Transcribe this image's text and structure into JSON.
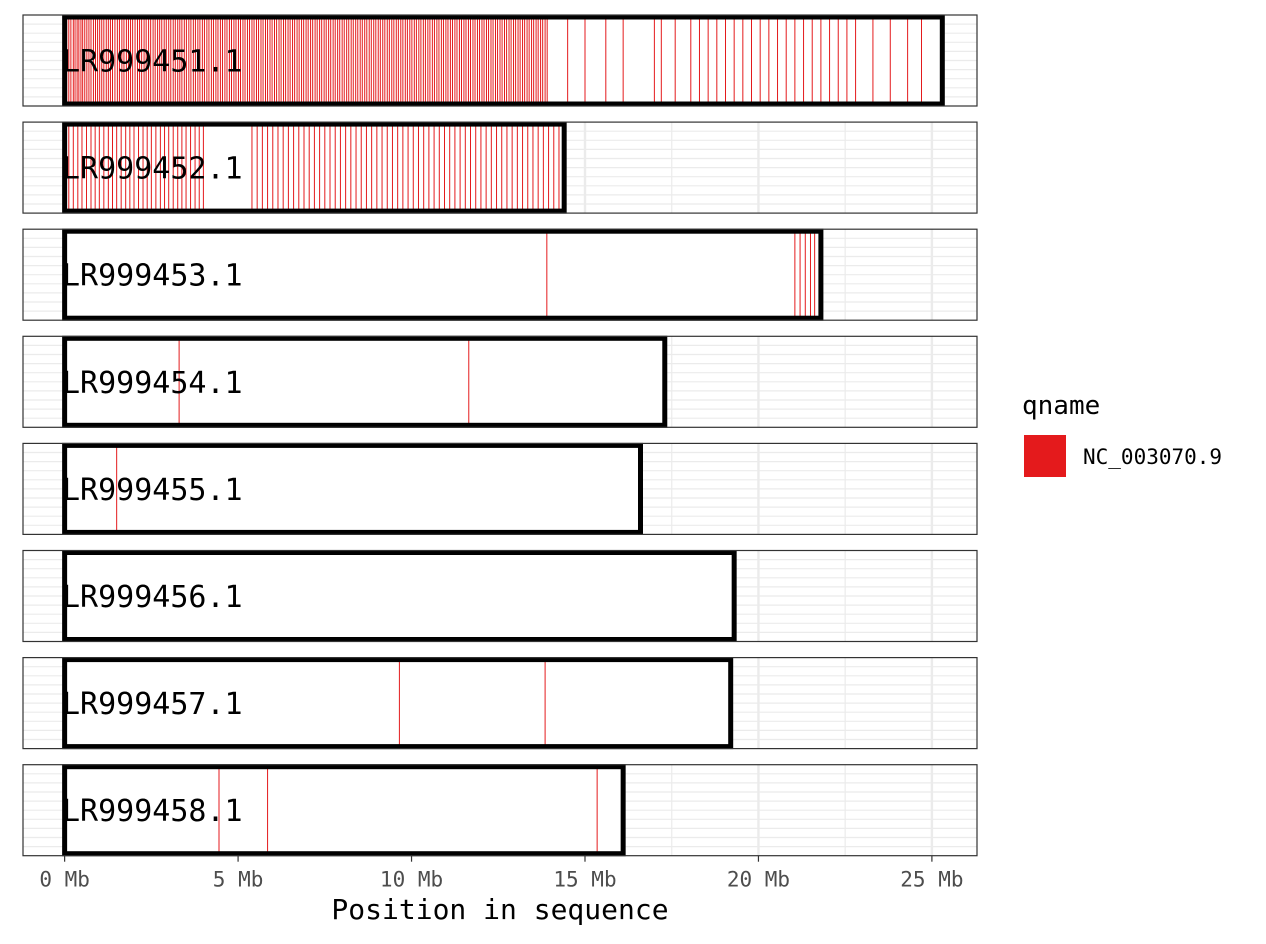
{
  "chart_data": {
    "type": "bar",
    "xlabel": "Position in sequence",
    "x_unit": "Mb",
    "xlim": [
      -1.2,
      26.3
    ],
    "x_ticks": [
      0,
      5,
      10,
      15,
      20,
      25
    ],
    "x_tick_labels": [
      "0 Mb",
      "5 Mb",
      "10 Mb",
      "15 Mb",
      "20 Mb",
      "25 Mb"
    ],
    "grid": true,
    "legend": {
      "title": "qname",
      "entries": [
        "NC_003070.9"
      ],
      "placement": "right"
    },
    "series": [
      {
        "name": "NC_003070.9",
        "color": "#e41a1c"
      }
    ],
    "chromosomes": [
      {
        "name": "LR999451.1",
        "length_mb": 25.3,
        "marks_mb": [
          0.06,
          0.12,
          0.18,
          0.25,
          0.3,
          0.36,
          0.41,
          0.47,
          0.52,
          0.58,
          0.64,
          0.7,
          0.76,
          0.83,
          0.89,
          0.95,
          1.01,
          1.07,
          1.13,
          1.2,
          1.26,
          1.32,
          1.38,
          1.45,
          1.52,
          1.58,
          1.65,
          1.71,
          1.78,
          1.84,
          1.9,
          1.96,
          2.03,
          2.1,
          2.16,
          2.22,
          2.29,
          2.35,
          2.42,
          2.48,
          2.55,
          2.61,
          2.68,
          2.74,
          2.8,
          2.87,
          2.93,
          3.0,
          3.06,
          3.13,
          3.19,
          3.26,
          3.32,
          3.38,
          3.45,
          3.51,
          3.58,
          3.64,
          3.71,
          3.77,
          3.84,
          3.9,
          3.97,
          4.03,
          4.1,
          4.16,
          4.23,
          4.29,
          4.36,
          4.42,
          4.49,
          4.55,
          4.62,
          4.68,
          4.75,
          4.81,
          4.88,
          4.94,
          5.01,
          5.07,
          5.14,
          5.2,
          5.27,
          5.33,
          5.4,
          5.46,
          5.53,
          5.59,
          5.66,
          5.72,
          5.79,
          5.85,
          5.92,
          5.98,
          6.05,
          6.11,
          6.18,
          6.24,
          6.31,
          6.37,
          6.44,
          6.5,
          6.57,
          6.63,
          6.7,
          6.76,
          6.83,
          6.89,
          6.96,
          7.02,
          7.09,
          7.15,
          7.22,
          7.28,
          7.35,
          7.41,
          7.48,
          7.54,
          7.61,
          7.67,
          7.74,
          7.8,
          7.87,
          7.93,
          8.0,
          8.06,
          8.13,
          8.19,
          8.26,
          8.32,
          8.39,
          8.45,
          8.52,
          8.58,
          8.65,
          8.71,
          8.78,
          8.84,
          8.91,
          8.97,
          9.04,
          9.1,
          9.17,
          9.23,
          9.3,
          9.36,
          9.43,
          9.49,
          9.56,
          9.62,
          9.69,
          9.75,
          9.82,
          9.88,
          9.95,
          10.01,
          10.08,
          10.14,
          10.21,
          10.27,
          10.34,
          10.4,
          10.47,
          10.53,
          10.6,
          10.66,
          10.73,
          10.79,
          10.86,
          10.92,
          10.99,
          11.05,
          11.12,
          11.18,
          11.25,
          11.31,
          11.38,
          11.44,
          11.51,
          11.57,
          11.64,
          11.7,
          11.77,
          11.83,
          11.9,
          11.96,
          12.03,
          12.09,
          12.16,
          12.22,
          12.29,
          12.35,
          12.42,
          12.48,
          12.55,
          12.61,
          12.68,
          12.74,
          12.81,
          12.87,
          12.94,
          13.0,
          13.07,
          13.13,
          13.2,
          13.26,
          13.33,
          13.39,
          13.46,
          13.52,
          13.59,
          13.65,
          13.72,
          13.78,
          13.85,
          13.91,
          14.5,
          15.0,
          15.6,
          16.1,
          17.0,
          17.2,
          17.6,
          18.05,
          18.3,
          18.55,
          18.8,
          19.05,
          19.3,
          19.55,
          19.8,
          20.05,
          20.3,
          20.55,
          20.8,
          21.05,
          21.3,
          21.55,
          21.8,
          22.05,
          22.3,
          22.55,
          22.8,
          23.3,
          23.8,
          24.3,
          24.7
        ]
      },
      {
        "name": "LR999452.1",
        "length_mb": 14.4,
        "marks_mb": [
          0.12,
          0.25,
          0.38,
          0.5,
          0.63,
          0.76,
          0.88,
          1.0,
          1.13,
          1.26,
          1.38,
          1.5,
          1.63,
          1.76,
          1.88,
          2.0,
          2.13,
          2.26,
          2.38,
          2.5,
          2.63,
          2.76,
          2.88,
          3.0,
          3.13,
          3.26,
          3.38,
          3.5,
          3.63,
          3.76,
          3.88,
          4.0,
          5.4,
          5.55,
          5.7,
          5.85,
          6.0,
          6.15,
          6.3,
          6.45,
          6.6,
          6.75,
          6.9,
          7.05,
          7.2,
          7.35,
          7.5,
          7.65,
          7.8,
          7.95,
          8.1,
          8.25,
          8.4,
          8.55,
          8.7,
          8.85,
          9.0,
          9.15,
          9.3,
          9.45,
          9.6,
          9.75,
          9.9,
          10.05,
          10.2,
          10.35,
          10.5,
          10.65,
          10.8,
          10.95,
          11.1,
          11.25,
          11.4,
          11.55,
          11.7,
          11.85,
          12.0,
          12.15,
          12.3,
          12.45,
          12.6,
          12.75,
          12.9,
          13.05,
          13.2,
          13.35,
          13.5,
          13.65,
          13.8,
          13.95,
          14.1,
          14.25
        ]
      },
      {
        "name": "LR999453.1",
        "length_mb": 21.8,
        "marks_mb": [
          13.9,
          21.05,
          21.2,
          21.35,
          21.5,
          21.62
        ]
      },
      {
        "name": "LR999454.1",
        "length_mb": 17.3,
        "marks_mb": [
          3.3,
          11.65
        ]
      },
      {
        "name": "LR999455.1",
        "length_mb": 16.6,
        "marks_mb": [
          1.5
        ]
      },
      {
        "name": "LR999456.1",
        "length_mb": 19.3,
        "marks_mb": [
          0.03
        ]
      },
      {
        "name": "LR999457.1",
        "length_mb": 19.2,
        "marks_mb": [
          9.65,
          13.85
        ]
      },
      {
        "name": "LR999458.1",
        "length_mb": 16.1,
        "marks_mb": [
          4.45,
          5.85,
          15.35
        ]
      }
    ]
  }
}
